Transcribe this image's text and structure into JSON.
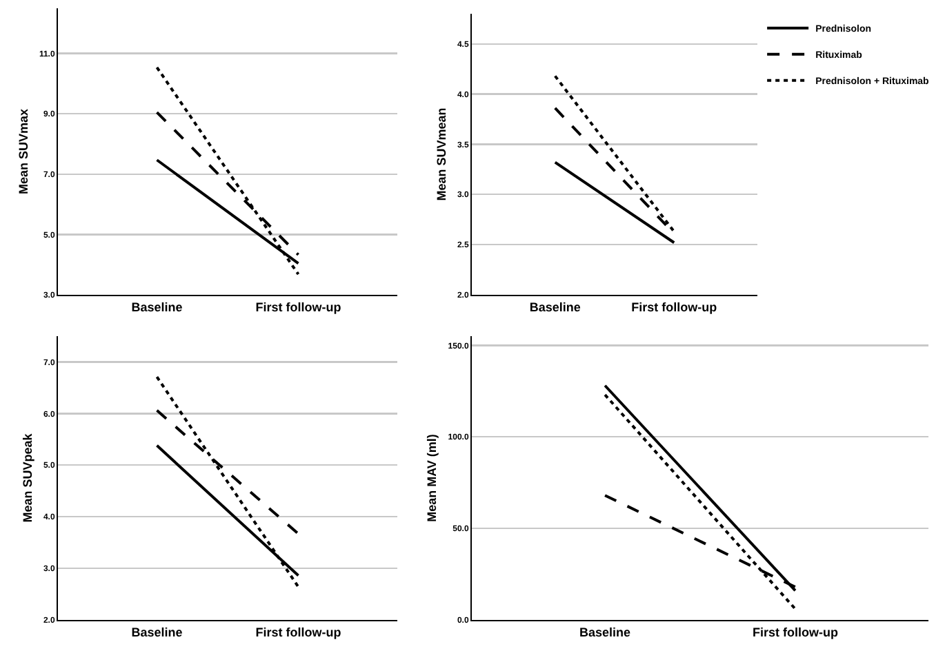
{
  "chart_data": [
    {
      "type": "line",
      "ylabel": "Mean SUVmax",
      "categories": [
        "Baseline",
        "First follow-up"
      ],
      "ylim": [
        3,
        12.5
      ],
      "yticks": [
        {
          "value": 3,
          "label": "3.0"
        },
        {
          "value": 5,
          "label": "5.0"
        },
        {
          "value": 7,
          "label": "7.0"
        },
        {
          "value": 9,
          "label": "9.0"
        },
        {
          "value": 11,
          "label": "11.0"
        }
      ],
      "grid": "y",
      "legend": false,
      "marker": "none",
      "series": [
        {
          "color": "#000000",
          "line_style": "solid",
          "values": [
            7.47,
            4.04
          ]
        },
        {
          "color": "#000000",
          "line_style": "dashed",
          "values": [
            9.05,
            4.33
          ]
        },
        {
          "color": "#000000",
          "line_style": "dotted",
          "values": [
            10.54,
            3.68
          ]
        }
      ]
    },
    {
      "type": "line",
      "ylabel": "Mean SUVmean",
      "categories": [
        "Baseline",
        "First follow-up"
      ],
      "ylim": [
        2,
        4.8
      ],
      "yticks": [
        {
          "value": 2,
          "label": "2.0"
        },
        {
          "value": 2.5,
          "label": "2.5"
        },
        {
          "value": 3,
          "label": "3.0"
        },
        {
          "value": 3.5,
          "label": "3.5"
        },
        {
          "value": 4,
          "label": "4.0"
        },
        {
          "value": 4.5,
          "label": "4.5"
        }
      ],
      "grid": "y",
      "legend": "top right",
      "marker": "none",
      "series": [
        {
          "name": "Prednisolon",
          "color": "#000000",
          "line_style": "solid",
          "values": [
            3.32,
            2.52
          ]
        },
        {
          "name": "Rituximab",
          "color": "#000000",
          "line_style": "dashed",
          "values": [
            3.86,
            2.61
          ]
        },
        {
          "name": "Prednisolon + Rituximab",
          "color": "#000000",
          "line_style": "dotted",
          "values": [
            4.18,
            2.63
          ]
        }
      ]
    },
    {
      "type": "line",
      "ylabel": "Mean SUVpeak",
      "categories": [
        "Baseline",
        "First follow-up"
      ],
      "ylim": [
        2,
        7.5
      ],
      "yticks": [
        {
          "value": 2,
          "label": "2.0"
        },
        {
          "value": 3,
          "label": "3.0"
        },
        {
          "value": 4,
          "label": "4.0"
        },
        {
          "value": 5,
          "label": "5.0"
        },
        {
          "value": 6,
          "label": "6.0"
        },
        {
          "value": 7,
          "label": "7.0"
        }
      ],
      "grid": "y",
      "legend": false,
      "marker": "none",
      "series": [
        {
          "color": "#000000",
          "line_style": "solid",
          "values": [
            5.38,
            2.86
          ]
        },
        {
          "color": "#000000",
          "line_style": "dashed",
          "values": [
            6.06,
            3.67
          ]
        },
        {
          "color": "#000000",
          "line_style": "dotted",
          "values": [
            6.71,
            2.64
          ]
        }
      ]
    },
    {
      "type": "line",
      "ylabel": "Mean MAV (ml)",
      "categories": [
        "Baseline",
        "First follow-up"
      ],
      "ylim": [
        0,
        155
      ],
      "yticks": [
        {
          "value": 0,
          "label": "0.0"
        },
        {
          "value": 50,
          "label": "50.0"
        },
        {
          "value": 100,
          "label": "100.0"
        },
        {
          "value": 150,
          "label": "150.0"
        }
      ],
      "grid": "y",
      "legend": false,
      "marker": "none",
      "series": [
        {
          "color": "#000000",
          "line_style": "solid",
          "values": [
            128,
            16
          ]
        },
        {
          "color": "#000000",
          "line_style": "dashed",
          "values": [
            68,
            18
          ]
        },
        {
          "color": "#000000",
          "line_style": "dotted",
          "values": [
            123,
            6
          ]
        }
      ]
    }
  ]
}
